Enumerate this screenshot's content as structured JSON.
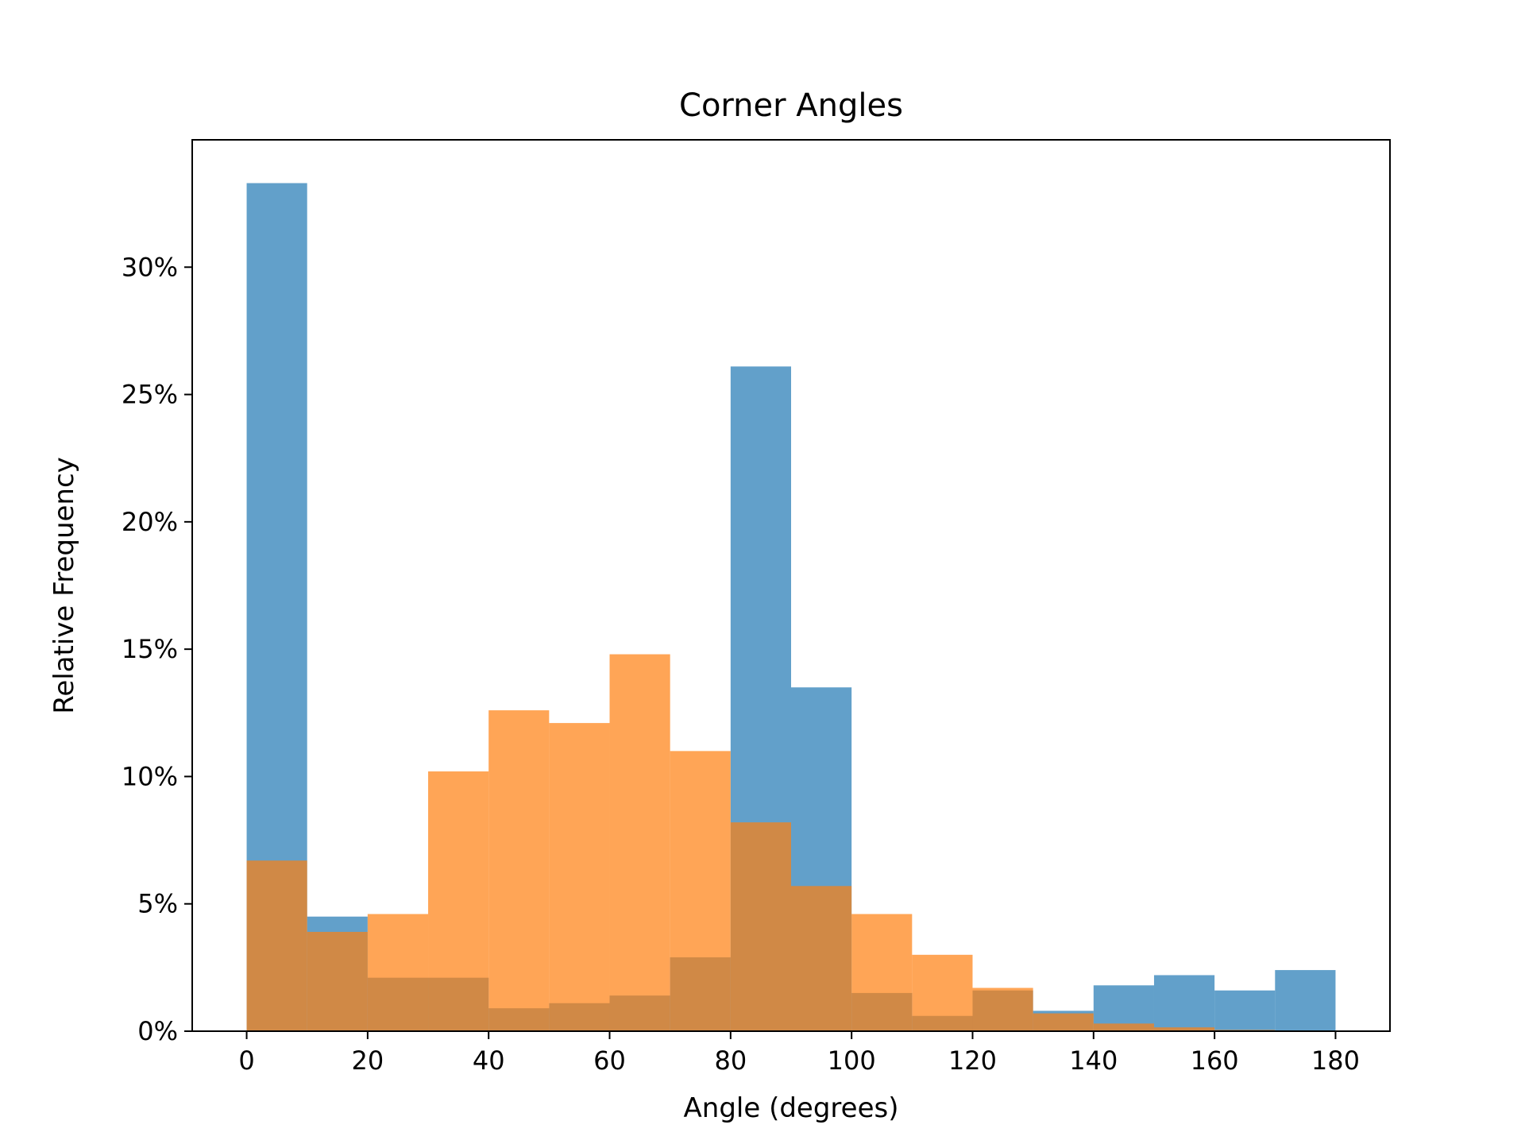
{
  "chart_data": {
    "type": "bar",
    "title": "Corner Angles",
    "xlabel": "Angle (degrees)",
    "ylabel": "Relative Frequency",
    "xlim": [
      -9,
      189
    ],
    "ylim": [
      0,
      35
    ],
    "bin_edges": [
      0,
      10,
      20,
      30,
      40,
      50,
      60,
      70,
      80,
      90,
      100,
      110,
      120,
      130,
      140,
      150,
      160,
      170,
      180
    ],
    "x_ticks": [
      0,
      20,
      40,
      60,
      80,
      100,
      120,
      140,
      160,
      180
    ],
    "x_tick_labels": [
      "0",
      "20",
      "40",
      "60",
      "80",
      "100",
      "120",
      "140",
      "160",
      "180"
    ],
    "y_ticks": [
      0,
      5,
      10,
      15,
      20,
      25,
      30
    ],
    "y_tick_labels": [
      "0%",
      "5%",
      "10%",
      "15%",
      "20%",
      "25%",
      "30%"
    ],
    "grid": false,
    "legend": "none",
    "series": [
      {
        "color": "#1f77b4",
        "opacity": 0.7,
        "values": [
          33.3,
          4.5,
          2.1,
          2.1,
          0.9,
          1.1,
          1.4,
          2.9,
          26.1,
          13.5,
          1.5,
          0.6,
          1.6,
          0.8,
          1.8,
          2.2,
          1.6,
          2.4
        ]
      },
      {
        "color": "#ff7f0e",
        "opacity": 0.7,
        "values": [
          6.7,
          3.9,
          4.6,
          10.2,
          12.6,
          12.1,
          14.8,
          11.0,
          8.2,
          5.7,
          4.6,
          3.0,
          1.7,
          0.7,
          0.3,
          0.15,
          0.05,
          0.0
        ]
      }
    ]
  }
}
